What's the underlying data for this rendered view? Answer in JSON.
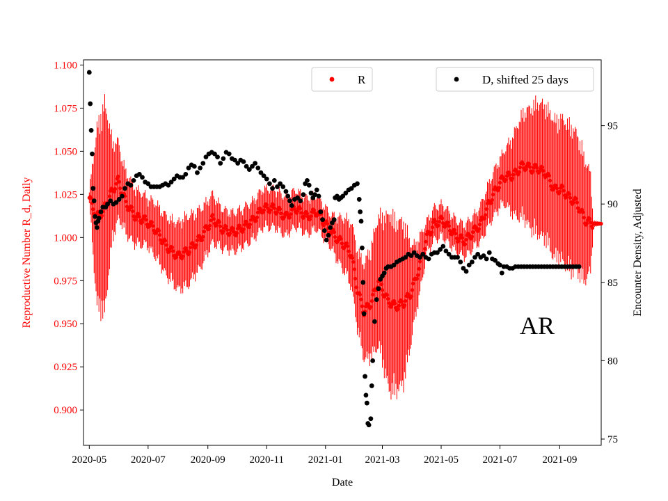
{
  "chart_data": {
    "type": "scatter",
    "panel_label": "AR",
    "xlabel": "Date",
    "ylabel_left": "Reproductive Number R_d, Daily",
    "ylabel_right": "Encounter Density, Adjusted",
    "x_ticks": [
      "2020-05",
      "2020-07",
      "2020-09",
      "2020-11",
      "2021-01",
      "2021-03",
      "2021-05",
      "2021-07",
      "2021-09"
    ],
    "x_tick_days": [
      0,
      61,
      123,
      184,
      245,
      304,
      365,
      426,
      488
    ],
    "x_range_days": [
      -6,
      531
    ],
    "ylim_left": [
      0.8795,
      1.103
    ],
    "ylim_right": [
      74.6,
      99.2
    ],
    "yticks_left": [
      "0.900",
      "0.925",
      "0.950",
      "0.975",
      "1.000",
      "1.025",
      "1.050",
      "1.075",
      "1.100"
    ],
    "yticks_right": [
      "75",
      "80",
      "85",
      "90",
      "95"
    ],
    "legend_R": "R",
    "legend_D": "D, shifted 25 days",
    "colors": {
      "R": "#ff0000",
      "D": "#000000",
      "left_axis": "#ff0000"
    },
    "series_R": {
      "name": "R",
      "description": "daily reproductive number with error bars",
      "keypoints_day_value": [
        [
          0,
          1.023
        ],
        [
          8,
          1.012
        ],
        [
          14,
          1.015
        ],
        [
          22,
          1.025
        ],
        [
          30,
          1.033
        ],
        [
          38,
          1.02
        ],
        [
          48,
          1.012
        ],
        [
          58,
          1.01
        ],
        [
          68,
          1.005
        ],
        [
          80,
          0.995
        ],
        [
          92,
          0.989
        ],
        [
          104,
          0.993
        ],
        [
          116,
          1.0
        ],
        [
          128,
          1.011
        ],
        [
          138,
          1.005
        ],
        [
          150,
          1.003
        ],
        [
          160,
          1.006
        ],
        [
          170,
          1.01
        ],
        [
          180,
          1.017
        ],
        [
          192,
          1.017
        ],
        [
          204,
          1.012
        ],
        [
          214,
          1.017
        ],
        [
          226,
          1.012
        ],
        [
          236,
          1.015
        ],
        [
          246,
          1.007
        ],
        [
          256,
          1.0
        ],
        [
          266,
          0.995
        ],
        [
          272,
          0.99
        ],
        [
          278,
          0.97
        ],
        [
          285,
          0.957
        ],
        [
          292,
          0.962
        ],
        [
          300,
          0.975
        ],
        [
          310,
          0.963
        ],
        [
          318,
          0.96
        ],
        [
          326,
          0.962
        ],
        [
          334,
          0.968
        ],
        [
          342,
          0.982
        ],
        [
          350,
          1.0
        ],
        [
          358,
          1.008
        ],
        [
          366,
          1.01
        ],
        [
          374,
          1.005
        ],
        [
          382,
          1.0
        ],
        [
          390,
          0.998
        ],
        [
          398,
          1.003
        ],
        [
          406,
          1.008
        ],
        [
          414,
          1.019
        ],
        [
          422,
          1.028
        ],
        [
          430,
          1.035
        ],
        [
          440,
          1.036
        ],
        [
          450,
          1.042
        ],
        [
          458,
          1.04
        ],
        [
          466,
          1.04
        ],
        [
          474,
          1.037
        ],
        [
          482,
          1.028
        ],
        [
          490,
          1.028
        ],
        [
          498,
          1.023
        ],
        [
          506,
          1.02
        ],
        [
          514,
          1.01
        ],
        [
          522,
          1.008
        ]
      ],
      "keypoints_day_err": [
        [
          0,
          0.004
        ],
        [
          8,
          0.055
        ],
        [
          16,
          0.065
        ],
        [
          24,
          0.03
        ],
        [
          34,
          0.02
        ],
        [
          60,
          0.015
        ],
        [
          100,
          0.022
        ],
        [
          140,
          0.012
        ],
        [
          200,
          0.012
        ],
        [
          250,
          0.01
        ],
        [
          272,
          0.02
        ],
        [
          286,
          0.03
        ],
        [
          300,
          0.04
        ],
        [
          312,
          0.055
        ],
        [
          326,
          0.05
        ],
        [
          336,
          0.025
        ],
        [
          350,
          0.01
        ],
        [
          400,
          0.01
        ],
        [
          430,
          0.016
        ],
        [
          446,
          0.03
        ],
        [
          462,
          0.04
        ],
        [
          500,
          0.045
        ],
        [
          512,
          0.04
        ],
        [
          520,
          0.03
        ],
        [
          523,
          0.002
        ],
        [
          531,
          0.001
        ]
      ]
    },
    "series_D": {
      "name": "D, shifted 25 days",
      "description": "encounter density, adjusted, shifted 25 days",
      "points": [
        [
          0,
          98.4
        ],
        [
          1,
          96.4
        ],
        [
          2,
          94.7
        ],
        [
          3,
          93.2
        ],
        [
          4,
          91.0
        ],
        [
          5,
          90.2
        ],
        [
          6,
          89.2
        ],
        [
          7,
          88.8
        ],
        [
          8,
          88.5
        ],
        [
          9,
          88.9
        ],
        [
          10,
          89.1
        ],
        [
          12,
          89.5
        ],
        [
          14,
          89.8
        ],
        [
          17,
          89.8
        ],
        [
          19,
          90.0
        ],
        [
          22,
          90.2
        ],
        [
          25,
          90.0
        ],
        [
          28,
          90.1
        ],
        [
          31,
          90.3
        ],
        [
          34,
          90.5
        ],
        [
          37,
          91.0
        ],
        [
          40,
          91.3
        ],
        [
          43,
          91.2
        ],
        [
          46,
          91.5
        ],
        [
          49,
          91.8
        ],
        [
          52,
          91.9
        ],
        [
          55,
          91.7
        ],
        [
          58,
          91.4
        ],
        [
          61,
          91.3
        ],
        [
          64,
          91.1
        ],
        [
          67,
          91.1
        ],
        [
          70,
          91.1
        ],
        [
          73,
          91.1
        ],
        [
          76,
          91.2
        ],
        [
          79,
          91.3
        ],
        [
          82,
          91.2
        ],
        [
          85,
          91.4
        ],
        [
          88,
          91.6
        ],
        [
          91,
          91.8
        ],
        [
          94,
          91.7
        ],
        [
          97,
          91.7
        ],
        [
          100,
          91.9
        ],
        [
          103,
          92.3
        ],
        [
          106,
          92.5
        ],
        [
          109,
          92.4
        ],
        [
          112,
          92.0
        ],
        [
          115,
          92.3
        ],
        [
          118,
          92.6
        ],
        [
          121,
          93.0
        ],
        [
          124,
          93.2
        ],
        [
          127,
          93.3
        ],
        [
          130,
          93.2
        ],
        [
          133,
          93.0
        ],
        [
          136,
          92.6
        ],
        [
          139,
          92.9
        ],
        [
          142,
          93.3
        ],
        [
          145,
          93.2
        ],
        [
          148,
          92.9
        ],
        [
          151,
          92.8
        ],
        [
          154,
          92.6
        ],
        [
          157,
          92.8
        ],
        [
          160,
          92.7
        ],
        [
          163,
          92.4
        ],
        [
          166,
          92.2
        ],
        [
          169,
          92.4
        ],
        [
          172,
          92.6
        ],
        [
          175,
          92.3
        ],
        [
          178,
          92.0
        ],
        [
          181,
          91.8
        ],
        [
          184,
          91.6
        ],
        [
          187,
          91.3
        ],
        [
          190,
          91.0
        ],
        [
          192,
          91.5
        ],
        [
          195,
          91.1
        ],
        [
          198,
          91.3
        ],
        [
          201,
          91.1
        ],
        [
          204,
          90.8
        ],
        [
          206,
          90.5
        ],
        [
          208,
          90.2
        ],
        [
          210,
          89.9
        ],
        [
          213,
          90.3
        ],
        [
          216,
          90.4
        ],
        [
          219,
          90.2
        ],
        [
          222,
          90.6
        ],
        [
          224,
          91.3
        ],
        [
          226,
          91.5
        ],
        [
          228,
          91.2
        ],
        [
          230,
          90.7
        ],
        [
          232,
          90.4
        ],
        [
          234,
          90.6
        ],
        [
          236,
          90.9
        ],
        [
          238,
          90.5
        ],
        [
          240,
          89.5
        ],
        [
          242,
          89.0
        ],
        [
          244,
          88.3
        ],
        [
          246,
          87.7
        ],
        [
          248,
          88.0
        ],
        [
          250,
          88.5
        ],
        [
          252,
          88.8
        ],
        [
          254,
          89.0
        ],
        [
          255,
          90.4
        ],
        [
          257,
          90.5
        ],
        [
          259,
          90.3
        ],
        [
          261,
          90.4
        ],
        [
          263,
          90.5
        ],
        [
          266,
          90.7
        ],
        [
          269,
          90.9
        ],
        [
          272,
          91.0
        ],
        [
          275,
          91.2
        ],
        [
          278,
          91.3
        ],
        [
          280,
          90.3
        ],
        [
          281,
          89.5
        ],
        [
          282,
          88.9
        ],
        [
          283,
          87.2
        ],
        [
          284,
          85.0
        ],
        [
          285,
          83.0
        ],
        [
          286,
          79.0
        ],
        [
          287,
          77.8
        ],
        [
          288,
          77.3
        ],
        [
          289,
          76.0
        ],
        [
          290,
          75.9
        ],
        [
          292,
          76.3
        ],
        [
          293,
          78.4
        ],
        [
          294,
          80.0
        ],
        [
          296,
          82.5
        ],
        [
          298,
          83.9
        ],
        [
          300,
          84.6
        ],
        [
          302,
          85.2
        ],
        [
          304,
          85.4
        ],
        [
          306,
          85.6
        ],
        [
          308,
          85.9
        ],
        [
          310,
          86.0
        ],
        [
          313,
          86.0
        ],
        [
          316,
          86.1
        ],
        [
          319,
          86.3
        ],
        [
          322,
          86.4
        ],
        [
          325,
          86.5
        ],
        [
          328,
          86.6
        ],
        [
          331,
          86.8
        ],
        [
          334,
          86.7
        ],
        [
          337,
          86.9
        ],
        [
          340,
          86.7
        ],
        [
          343,
          86.6
        ],
        [
          346,
          86.8
        ],
        [
          349,
          86.6
        ],
        [
          352,
          86.5
        ],
        [
          355,
          86.8
        ],
        [
          358,
          86.9
        ],
        [
          361,
          86.9
        ],
        [
          364,
          87.1
        ],
        [
          367,
          87.3
        ],
        [
          370,
          87.0
        ],
        [
          373,
          86.8
        ],
        [
          376,
          86.6
        ],
        [
          379,
          86.6
        ],
        [
          382,
          86.6
        ],
        [
          385,
          86.3
        ],
        [
          388,
          85.9
        ],
        [
          391,
          85.7
        ],
        [
          394,
          86.1
        ],
        [
          397,
          86.3
        ],
        [
          400,
          86.6
        ],
        [
          403,
          86.8
        ],
        [
          406,
          86.6
        ],
        [
          409,
          86.7
        ],
        [
          412,
          86.5
        ],
        [
          415,
          86.9
        ],
        [
          418,
          86.5
        ],
        [
          421,
          86.4
        ],
        [
          424,
          86.2
        ],
        [
          426,
          86.1
        ],
        [
          428,
          85.6
        ],
        [
          430,
          86.0
        ],
        [
          433,
          86.0
        ],
        [
          436,
          85.9
        ],
        [
          439,
          85.9
        ],
        [
          442,
          86.0
        ],
        [
          445,
          86.0
        ],
        [
          448,
          86.0
        ],
        [
          451,
          86.0
        ],
        [
          454,
          86.0
        ],
        [
          457,
          86.0
        ],
        [
          460,
          86.0
        ],
        [
          463,
          86.0
        ],
        [
          466,
          86.0
        ],
        [
          469,
          86.0
        ],
        [
          472,
          86.0
        ],
        [
          475,
          86.0
        ],
        [
          478,
          86.0
        ],
        [
          481,
          86.0
        ],
        [
          484,
          86.0
        ],
        [
          487,
          86.0
        ],
        [
          490,
          86.0
        ],
        [
          493,
          86.0
        ],
        [
          496,
          86.0
        ],
        [
          499,
          86.0
        ],
        [
          502,
          86.0
        ],
        [
          505,
          86.0
        ],
        [
          508,
          86.0
        ]
      ]
    }
  }
}
